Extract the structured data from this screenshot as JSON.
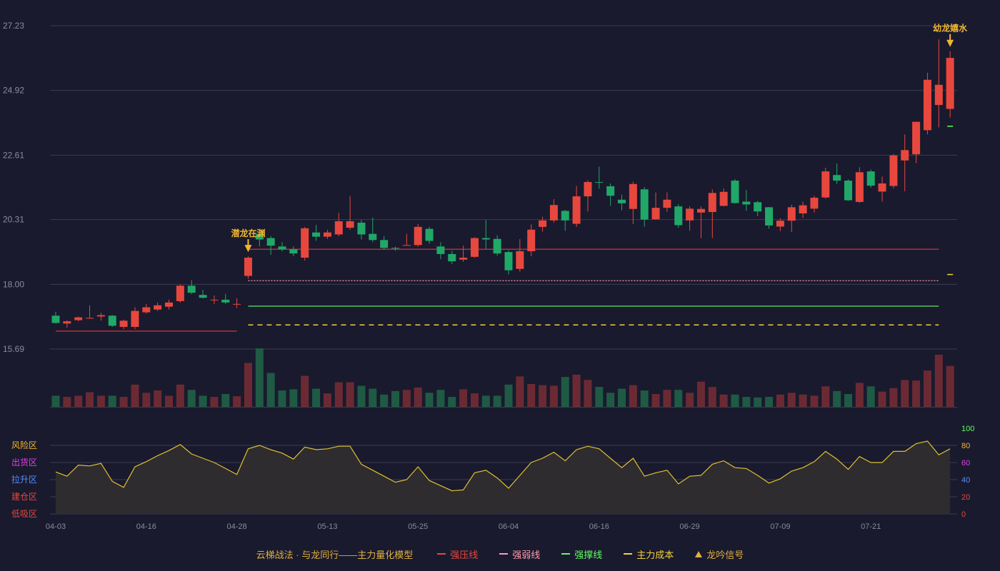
{
  "colors": {
    "up": "#e8473e",
    "down": "#20a868",
    "vol_up": "#6b2a33",
    "vol_down": "#1f5a44",
    "grid": "#3a3c50",
    "axis_text": "#8a8c9a",
    "signal": "#f2b730",
    "pressure": "#b03040",
    "weak": "#ff9bb0",
    "support": "#60ff60",
    "cost": "#f2d23a",
    "osc_line": "#e0c030",
    "osc_fill": "#2e2c2e"
  },
  "legend": {
    "title": "云梯战法 · 与龙同行——主力量化模型",
    "items": [
      {
        "label": "强压线",
        "style": "solid-red",
        "color": "#e8473e"
      },
      {
        "label": "强弱线",
        "style": "dash-pink",
        "color": "#ff9bb0"
      },
      {
        "label": "强撑线",
        "style": "solid-green",
        "color": "#60ff60"
      },
      {
        "label": "主力成本",
        "style": "dash-yellow",
        "color": "#f2d23a"
      },
      {
        "label": "龙吟信号",
        "style": "tri",
        "color": "#e0b040"
      }
    ]
  },
  "chart_data": {
    "type": "candlestick",
    "price_axis": {
      "ticks": [
        "27.23",
        "24.92",
        "22.61",
        "20.31",
        "18.00",
        "15.69"
      ],
      "ylim": [
        15.69,
        27.23
      ]
    },
    "x_tick_labels": [
      {
        "index": 0,
        "label": "04-03"
      },
      {
        "index": 8,
        "label": "04-16"
      },
      {
        "index": 16,
        "label": "04-28"
      },
      {
        "index": 24,
        "label": "05-13"
      },
      {
        "index": 32,
        "label": "05-25"
      },
      {
        "index": 40,
        "label": "06-04"
      },
      {
        "index": 48,
        "label": "06-16"
      },
      {
        "index": 56,
        "label": "06-29"
      },
      {
        "index": 64,
        "label": "07-09"
      },
      {
        "index": 72,
        "label": "07-21"
      }
    ],
    "candles": [
      [
        16.88,
        16.62,
        17.02,
        16.6
      ],
      [
        16.6,
        16.68,
        16.72,
        16.45
      ],
      [
        16.72,
        16.82,
        16.85,
        16.68
      ],
      [
        16.8,
        16.8,
        17.25,
        16.78
      ],
      [
        16.85,
        16.9,
        16.98,
        16.7
      ],
      [
        16.88,
        16.52,
        16.9,
        16.48
      ],
      [
        16.48,
        16.7,
        16.74,
        16.4
      ],
      [
        16.48,
        17.05,
        17.18,
        16.4
      ],
      [
        17.0,
        17.18,
        17.3,
        16.95
      ],
      [
        17.1,
        17.25,
        17.35,
        17.05
      ],
      [
        17.2,
        17.35,
        17.45,
        17.1
      ],
      [
        17.4,
        17.95,
        18.0,
        17.35
      ],
      [
        17.95,
        17.7,
        18.15,
        17.65
      ],
      [
        17.62,
        17.52,
        17.8,
        17.5
      ],
      [
        17.45,
        17.45,
        17.6,
        17.3
      ],
      [
        17.45,
        17.35,
        17.65,
        17.3
      ],
      [
        17.28,
        17.3,
        17.5,
        17.15
      ],
      [
        18.3,
        18.95,
        19.0,
        18.2
      ],
      [
        19.8,
        19.6,
        19.92,
        19.35
      ],
      [
        19.65,
        19.38,
        19.72,
        19.05
      ],
      [
        19.35,
        19.25,
        19.5,
        19.18
      ],
      [
        19.25,
        19.1,
        19.35,
        19.0
      ],
      [
        18.95,
        20.0,
        20.05,
        18.85
      ],
      [
        19.85,
        19.7,
        20.12,
        19.55
      ],
      [
        19.7,
        19.85,
        19.95,
        19.62
      ],
      [
        19.78,
        20.25,
        20.55,
        19.72
      ],
      [
        20.02,
        20.25,
        21.15,
        19.95
      ],
      [
        20.2,
        19.78,
        20.3,
        19.6
      ],
      [
        19.8,
        19.58,
        20.38,
        19.5
      ],
      [
        19.58,
        19.3,
        19.72,
        19.24
      ],
      [
        19.3,
        19.28,
        19.34,
        19.2
      ],
      [
        19.4,
        19.4,
        19.8,
        19.4
      ],
      [
        19.4,
        20.05,
        20.15,
        19.35
      ],
      [
        19.98,
        19.55,
        20.05,
        19.45
      ],
      [
        19.35,
        19.08,
        19.5,
        18.9
      ],
      [
        19.08,
        18.82,
        19.2,
        18.72
      ],
      [
        18.88,
        18.95,
        19.38,
        18.8
      ],
      [
        18.98,
        19.65,
        19.68,
        18.95
      ],
      [
        19.65,
        19.6,
        20.3,
        19.25
      ],
      [
        19.62,
        19.1,
        19.75,
        19.02
      ],
      [
        19.15,
        18.5,
        19.21,
        18.35
      ],
      [
        18.55,
        19.18,
        19.61,
        18.45
      ],
      [
        19.18,
        19.95,
        20.14,
        19.0
      ],
      [
        20.05,
        20.28,
        20.41,
        19.88
      ],
      [
        20.28,
        20.83,
        21.04,
        20.2
      ],
      [
        20.62,
        20.28,
        20.66,
        19.91
      ],
      [
        20.16,
        21.14,
        21.51,
        20.05
      ],
      [
        21.14,
        21.65,
        21.71,
        20.6
      ],
      [
        21.65,
        21.63,
        22.2,
        21.41
      ],
      [
        21.5,
        21.16,
        21.6,
        20.8
      ],
      [
        21.02,
        20.89,
        21.2,
        20.64
      ],
      [
        20.69,
        21.58,
        21.66,
        20.15
      ],
      [
        21.39,
        20.31,
        21.47,
        20.06
      ],
      [
        20.32,
        20.73,
        21.28,
        20.3
      ],
      [
        20.73,
        21.02,
        21.28,
        20.59
      ],
      [
        20.78,
        20.11,
        20.86,
        20.02
      ],
      [
        20.28,
        20.7,
        20.78,
        19.91
      ],
      [
        20.56,
        20.69,
        20.78,
        19.65
      ],
      [
        20.58,
        21.26,
        21.38,
        19.65
      ],
      [
        20.8,
        21.3,
        21.42,
        20.78
      ],
      [
        21.7,
        20.9,
        21.75,
        20.88
      ],
      [
        20.95,
        20.85,
        21.37,
        20.62
      ],
      [
        20.93,
        20.6,
        20.98,
        20.43
      ],
      [
        20.75,
        20.1,
        20.76,
        19.98
      ],
      [
        20.06,
        20.27,
        20.35,
        19.9
      ],
      [
        20.27,
        20.75,
        20.84,
        19.86
      ],
      [
        20.53,
        20.82,
        20.95,
        20.37
      ],
      [
        20.7,
        21.09,
        21.16,
        20.56
      ],
      [
        21.1,
        22.03,
        22.16,
        21.06
      ],
      [
        21.9,
        21.7,
        22.31,
        21.58
      ],
      [
        21.7,
        21.0,
        21.75,
        20.98
      ],
      [
        20.94,
        22.0,
        22.18,
        20.91
      ],
      [
        22.03,
        21.52,
        22.1,
        21.45
      ],
      [
        21.31,
        21.6,
        21.85,
        20.95
      ],
      [
        21.51,
        22.6,
        22.65,
        21.42
      ],
      [
        22.42,
        22.79,
        23.35,
        21.32
      ],
      [
        22.64,
        23.8,
        23.8,
        22.32
      ],
      [
        23.5,
        25.3,
        25.55,
        23.35
      ],
      [
        24.4,
        25.12,
        26.75,
        23.6
      ],
      [
        24.26,
        26.08,
        26.32,
        23.95
      ]
    ],
    "volume_axis": {
      "ticks": []
    },
    "volumes": [
      0.19,
      0.17,
      0.19,
      0.25,
      0.19,
      0.19,
      0.17,
      0.38,
      0.24,
      0.28,
      0.19,
      0.38,
      0.29,
      0.19,
      0.17,
      0.22,
      0.18,
      0.75,
      1.0,
      0.58,
      0.28,
      0.3,
      0.53,
      0.31,
      0.23,
      0.42,
      0.42,
      0.36,
      0.31,
      0.21,
      0.27,
      0.29,
      0.33,
      0.24,
      0.29,
      0.17,
      0.3,
      0.23,
      0.19,
      0.19,
      0.38,
      0.52,
      0.39,
      0.37,
      0.36,
      0.51,
      0.55,
      0.46,
      0.34,
      0.24,
      0.31,
      0.37,
      0.28,
      0.22,
      0.29,
      0.29,
      0.24,
      0.43,
      0.34,
      0.21,
      0.21,
      0.17,
      0.16,
      0.17,
      0.21,
      0.24,
      0.21,
      0.19,
      0.35,
      0.27,
      0.22,
      0.41,
      0.35,
      0.26,
      0.32,
      0.46,
      0.45,
      0.62,
      0.89,
      0.7
    ],
    "oscillator_axis": {
      "ticks": [
        {
          "value": 100,
          "label": "100",
          "color": "#60ff60"
        },
        {
          "value": 80,
          "label": "80",
          "color": "#f2b730"
        },
        {
          "value": 60,
          "label": "60",
          "color": "#e040e0"
        },
        {
          "value": 40,
          "label": "40",
          "color": "#5a8cff"
        },
        {
          "value": 20,
          "label": "20",
          "color": "#e8473e"
        },
        {
          "value": 0,
          "label": "0",
          "color": "#e8473e"
        }
      ],
      "zones": [
        {
          "label": "风险区",
          "color": "#f2b730"
        },
        {
          "label": "出货区",
          "color": "#e040e0"
        },
        {
          "label": "拉升区",
          "color": "#5a8cff"
        },
        {
          "label": "建仓区",
          "color": "#e8473e"
        },
        {
          "label": "低吸区",
          "color": "#e8473e"
        }
      ]
    },
    "oscillator": [
      49,
      44,
      57,
      56,
      59,
      38,
      31,
      55,
      61,
      68,
      74,
      81,
      70,
      65,
      60,
      53,
      46,
      76,
      80,
      75,
      71,
      64,
      78,
      75,
      76,
      79,
      79,
      58,
      51,
      44,
      37,
      40,
      55,
      39,
      33,
      27,
      28,
      48,
      51,
      42,
      30,
      45,
      60,
      65,
      72,
      62,
      75,
      79,
      76,
      65,
      54,
      65,
      44,
      48,
      51,
      35,
      44,
      45,
      58,
      62,
      54,
      53,
      45,
      36,
      41,
      50,
      54,
      61,
      73,
      64,
      52,
      67,
      60,
      60,
      73,
      73,
      82,
      85,
      69,
      76
    ],
    "lines": {
      "pressure_early": {
        "label": "强压线",
        "value": 16.33,
        "from": 0,
        "to": 16
      },
      "pressure": {
        "label": "强压线",
        "value": 19.25,
        "from": 17,
        "to": 78
      },
      "weak": {
        "label": "强弱线",
        "value": 18.13,
        "from": 17,
        "to": 78
      },
      "support": {
        "label": "强撑线",
        "value": 17.22,
        "from": 17,
        "to": 78
      },
      "cost": {
        "label": "主力成本",
        "value": 16.55,
        "from": 17,
        "to": 78
      },
      "last_support": {
        "value": 23.64
      },
      "last_cost": {
        "value": 18.35
      }
    },
    "signals": [
      {
        "index": 17,
        "label": "潜龙在渊"
      },
      {
        "index": 79,
        "label": "幼龙嬉水"
      }
    ]
  }
}
